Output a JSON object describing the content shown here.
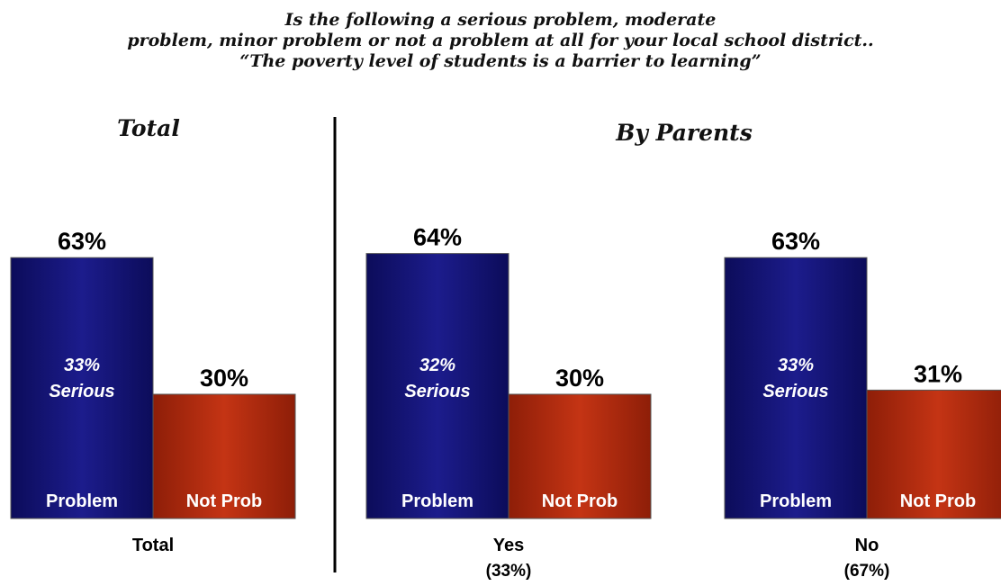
{
  "title_lines": [
    "Is the following a serious problem, moderate",
    "problem, minor problem or not a problem at all for your local school district..",
    "“The poverty level of students is a barrier to learning”"
  ],
  "panels": [
    {
      "heading": "Total"
    },
    {
      "heading": "By Parents"
    }
  ],
  "colors": {
    "problem": "#14147a",
    "not_problem": "#b02a10",
    "divider": "#000000"
  },
  "chart_data": {
    "type": "bar",
    "ylabel": "",
    "xlabel": "",
    "ylim": [
      0,
      100
    ],
    "bar_labels": [
      "Problem",
      "Not Prob"
    ],
    "groups": [
      {
        "panel": "Total",
        "label": "Total",
        "sublabel": "",
        "problem": 63,
        "serious": 33,
        "serious_label": "Serious",
        "not_problem": 30
      },
      {
        "panel": "By Parents",
        "label": "Yes",
        "sublabel": "(33%)",
        "problem": 64,
        "serious": 32,
        "serious_label": "Serious",
        "not_problem": 30
      },
      {
        "panel": "By Parents",
        "label": "No",
        "sublabel": "(67%)",
        "problem": 63,
        "serious": 33,
        "serious_label": "Serious",
        "not_problem": 31
      }
    ]
  }
}
